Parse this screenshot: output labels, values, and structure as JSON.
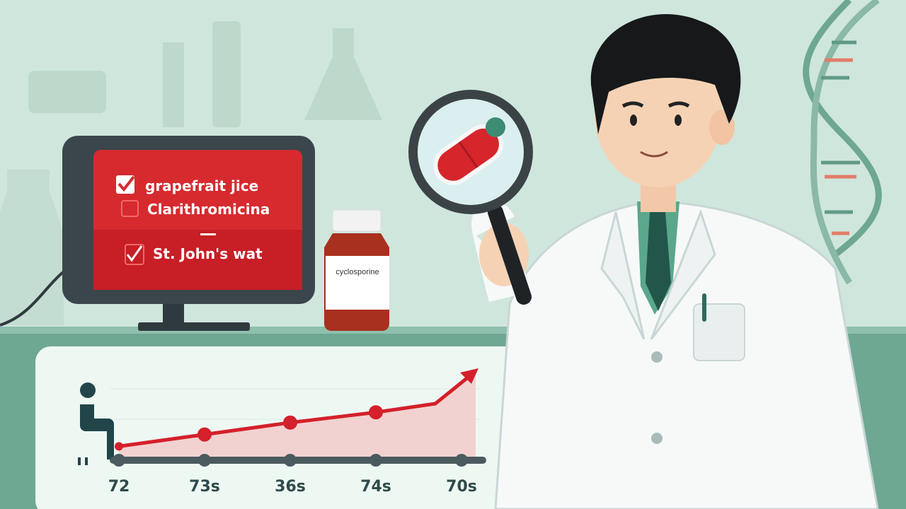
{
  "monitor": {
    "items": [
      {
        "label": "grapefrait jice",
        "checked": true
      },
      {
        "label": "Clarithromicina",
        "checked": false
      },
      {
        "label": "St. John's wat",
        "checked": true
      }
    ]
  },
  "bottle": {
    "label": "cyclosporine"
  },
  "chart_data": {
    "type": "line",
    "categories": [
      "72",
      "73s",
      "36s",
      "74s",
      "70s"
    ],
    "values": [
      5,
      20,
      35,
      48,
      100
    ],
    "title": "",
    "xlabel": "",
    "ylabel": "",
    "grid": true,
    "trend": "rising, ends in arrow"
  },
  "colors": {
    "background": "#cfe6dc",
    "accent_red": "#d4202a",
    "dark_teal": "#2f4a4a",
    "coat": "#f7f9f9"
  }
}
